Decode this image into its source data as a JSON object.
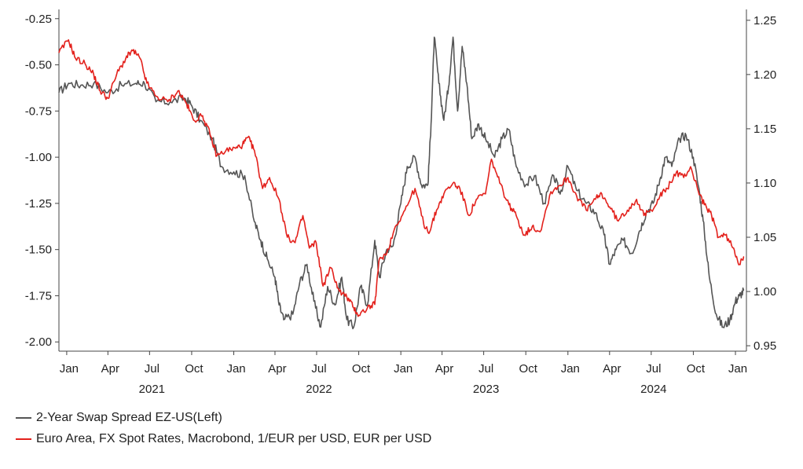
{
  "chart_data": {
    "type": "line",
    "title": "",
    "x_range": [
      "2020-12-15",
      "2025-01-25"
    ],
    "month_ticks": [
      "Jan",
      "Apr",
      "Jul",
      "Oct",
      "Jan",
      "Apr",
      "Jul",
      "Oct",
      "Jan",
      "Apr",
      "Jul",
      "Oct",
      "Jan",
      "Apr",
      "Jul",
      "Oct",
      "Jan"
    ],
    "month_tick_dates": [
      "2021-01-01",
      "2021-04-01",
      "2021-07-01",
      "2021-10-01",
      "2022-01-01",
      "2022-04-01",
      "2022-07-01",
      "2022-10-01",
      "2023-01-01",
      "2023-04-01",
      "2023-07-01",
      "2023-10-01",
      "2024-01-01",
      "2024-04-01",
      "2024-07-01",
      "2024-10-01",
      "2025-01-01"
    ],
    "year_labels": [
      "2021",
      "2022",
      "2023",
      "2024"
    ],
    "year_label_dates": [
      "2021-07-01",
      "2022-07-01",
      "2023-07-01",
      "2024-07-01"
    ],
    "left_axis": {
      "ylim": [
        -2.05,
        -0.2
      ],
      "ticks": [
        -2.0,
        -1.75,
        -1.5,
        -1.25,
        -1.0,
        -0.75,
        -0.5,
        -0.25
      ],
      "tick_labels": [
        "-2.00",
        "-1.75",
        "-1.50",
        "-1.25",
        "-1.00",
        "-0.75",
        "-0.50",
        "-0.25"
      ]
    },
    "right_axis": {
      "ylim": [
        0.945,
        1.26
      ],
      "ticks": [
        0.95,
        1.0,
        1.05,
        1.1,
        1.15,
        1.2,
        1.25
      ],
      "tick_labels": [
        "0.95",
        "1.00",
        "1.05",
        "1.10",
        "1.15",
        "1.20",
        "1.25"
      ]
    },
    "series": [
      {
        "name": "2-Year Swap Spread EZ-US(Left)",
        "axis": "left",
        "color": "#555555",
        "points": [
          [
            "2020-12-15",
            -0.65
          ],
          [
            "2021-01-05",
            -0.6
          ],
          [
            "2021-02-01",
            -0.61
          ],
          [
            "2021-03-01",
            -0.6
          ],
          [
            "2021-04-01",
            -0.65
          ],
          [
            "2021-05-01",
            -0.61
          ],
          [
            "2021-06-01",
            -0.6
          ],
          [
            "2021-06-20",
            -0.6
          ],
          [
            "2021-07-15",
            -0.7
          ],
          [
            "2021-08-15",
            -0.7
          ],
          [
            "2021-09-15",
            -0.68
          ],
          [
            "2021-10-01",
            -0.72
          ],
          [
            "2021-10-20",
            -0.8
          ],
          [
            "2021-11-15",
            -0.9
          ],
          [
            "2021-12-05",
            -1.05
          ],
          [
            "2022-01-01",
            -1.08
          ],
          [
            "2022-01-25",
            -1.1
          ],
          [
            "2022-02-15",
            -1.35
          ],
          [
            "2022-03-01",
            -1.45
          ],
          [
            "2022-03-15",
            -1.55
          ],
          [
            "2022-04-01",
            -1.65
          ],
          [
            "2022-04-10",
            -1.8
          ],
          [
            "2022-04-20",
            -1.88
          ],
          [
            "2022-05-10",
            -1.85
          ],
          [
            "2022-05-25",
            -1.68
          ],
          [
            "2022-06-10",
            -1.58
          ],
          [
            "2022-06-25",
            -1.78
          ],
          [
            "2022-07-10",
            -1.92
          ],
          [
            "2022-07-25",
            -1.7
          ],
          [
            "2022-08-10",
            -1.8
          ],
          [
            "2022-08-25",
            -1.65
          ],
          [
            "2022-09-05",
            -1.88
          ],
          [
            "2022-09-20",
            -1.92
          ],
          [
            "2022-10-05",
            -1.7
          ],
          [
            "2022-10-20",
            -1.8
          ],
          [
            "2022-11-05",
            -1.45
          ],
          [
            "2022-11-15",
            -1.65
          ],
          [
            "2022-12-01",
            -1.5
          ],
          [
            "2022-12-15",
            -1.48
          ],
          [
            "2023-01-01",
            -1.25
          ],
          [
            "2023-01-15",
            -1.05
          ],
          [
            "2023-02-01",
            -1.0
          ],
          [
            "2023-02-15",
            -1.15
          ],
          [
            "2023-03-01",
            -1.15
          ],
          [
            "2023-03-08",
            -0.82
          ],
          [
            "2023-03-15",
            -0.35
          ],
          [
            "2023-03-25",
            -0.6
          ],
          [
            "2023-04-05",
            -0.8
          ],
          [
            "2023-04-15",
            -0.62
          ],
          [
            "2023-04-25",
            -0.35
          ],
          [
            "2023-05-05",
            -0.75
          ],
          [
            "2023-05-15",
            -0.4
          ],
          [
            "2023-05-25",
            -0.6
          ],
          [
            "2023-06-05",
            -0.9
          ],
          [
            "2023-06-20",
            -0.82
          ],
          [
            "2023-07-05",
            -0.9
          ],
          [
            "2023-07-25",
            -1.0
          ],
          [
            "2023-08-10",
            -0.9
          ],
          [
            "2023-08-25",
            -0.85
          ],
          [
            "2023-09-10",
            -1.05
          ],
          [
            "2023-10-01",
            -1.15
          ],
          [
            "2023-10-20",
            -1.1
          ],
          [
            "2023-11-10",
            -1.25
          ],
          [
            "2023-12-01",
            -1.1
          ],
          [
            "2023-12-15",
            -1.2
          ],
          [
            "2024-01-01",
            -1.05
          ],
          [
            "2024-01-20",
            -1.18
          ],
          [
            "2024-02-10",
            -1.25
          ],
          [
            "2024-03-01",
            -1.3
          ],
          [
            "2024-03-20",
            -1.42
          ],
          [
            "2024-04-01",
            -1.58
          ],
          [
            "2024-04-15",
            -1.5
          ],
          [
            "2024-05-01",
            -1.45
          ],
          [
            "2024-05-20",
            -1.52
          ],
          [
            "2024-06-05",
            -1.4
          ],
          [
            "2024-06-20",
            -1.3
          ],
          [
            "2024-07-05",
            -1.25
          ],
          [
            "2024-07-20",
            -1.12
          ],
          [
            "2024-08-01",
            -1.0
          ],
          [
            "2024-08-15",
            -1.05
          ],
          [
            "2024-09-01",
            -0.9
          ],
          [
            "2024-09-15",
            -0.88
          ],
          [
            "2024-10-01",
            -1.0
          ],
          [
            "2024-10-15",
            -1.2
          ],
          [
            "2024-10-25",
            -1.4
          ],
          [
            "2024-11-05",
            -1.65
          ],
          [
            "2024-11-20",
            -1.85
          ],
          [
            "2024-12-05",
            -1.92
          ],
          [
            "2024-12-20",
            -1.88
          ],
          [
            "2025-01-01",
            -1.78
          ],
          [
            "2025-01-10",
            -1.75
          ],
          [
            "2025-01-20",
            -1.72
          ]
        ]
      },
      {
        "name": "Euro Area, FX Spot Rates, Macrobond, 1/EUR per USD, EUR per USD",
        "axis": "right",
        "color": "#e3211c",
        "points": [
          [
            "2020-12-15",
            1.22
          ],
          [
            "2021-01-05",
            1.232
          ],
          [
            "2021-01-20",
            1.215
          ],
          [
            "2021-02-10",
            1.21
          ],
          [
            "2021-03-01",
            1.2
          ],
          [
            "2021-03-15",
            1.185
          ],
          [
            "2021-04-01",
            1.178
          ],
          [
            "2021-04-20",
            1.2
          ],
          [
            "2021-05-10",
            1.215
          ],
          [
            "2021-05-25",
            1.222
          ],
          [
            "2021-06-10",
            1.215
          ],
          [
            "2021-06-25",
            1.192
          ],
          [
            "2021-07-15",
            1.18
          ],
          [
            "2021-08-10",
            1.175
          ],
          [
            "2021-09-01",
            1.185
          ],
          [
            "2021-09-20",
            1.173
          ],
          [
            "2021-10-05",
            1.158
          ],
          [
            "2021-10-25",
            1.162
          ],
          [
            "2021-11-10",
            1.145
          ],
          [
            "2021-11-25",
            1.125
          ],
          [
            "2021-12-15",
            1.13
          ],
          [
            "2022-01-05",
            1.132
          ],
          [
            "2022-01-20",
            1.135
          ],
          [
            "2022-02-01",
            1.142
          ],
          [
            "2022-02-15",
            1.13
          ],
          [
            "2022-03-05",
            1.095
          ],
          [
            "2022-03-20",
            1.105
          ],
          [
            "2022-04-10",
            1.085
          ],
          [
            "2022-04-28",
            1.05
          ],
          [
            "2022-05-15",
            1.045
          ],
          [
            "2022-06-01",
            1.07
          ],
          [
            "2022-06-15",
            1.04
          ],
          [
            "2022-06-30",
            1.045
          ],
          [
            "2022-07-15",
            1.005
          ],
          [
            "2022-08-01",
            1.022
          ],
          [
            "2022-08-20",
            1.0
          ],
          [
            "2022-09-05",
            0.995
          ],
          [
            "2022-09-20",
            0.985
          ],
          [
            "2022-10-01",
            0.978
          ],
          [
            "2022-10-20",
            0.985
          ],
          [
            "2022-11-05",
            0.988
          ],
          [
            "2022-11-15",
            1.03
          ],
          [
            "2022-12-01",
            1.035
          ],
          [
            "2022-12-20",
            1.06
          ],
          [
            "2023-01-10",
            1.075
          ],
          [
            "2023-02-01",
            1.095
          ],
          [
            "2023-02-20",
            1.062
          ],
          [
            "2023-03-05",
            1.055
          ],
          [
            "2023-03-20",
            1.075
          ],
          [
            "2023-04-05",
            1.09
          ],
          [
            "2023-04-25",
            1.1
          ],
          [
            "2023-05-10",
            1.095
          ],
          [
            "2023-05-30",
            1.07
          ],
          [
            "2023-06-15",
            1.085
          ],
          [
            "2023-07-05",
            1.09
          ],
          [
            "2023-07-18",
            1.122
          ],
          [
            "2023-08-05",
            1.1
          ],
          [
            "2023-08-25",
            1.08
          ],
          [
            "2023-09-10",
            1.07
          ],
          [
            "2023-09-28",
            1.052
          ],
          [
            "2023-10-15",
            1.06
          ],
          [
            "2023-11-01",
            1.055
          ],
          [
            "2023-11-25",
            1.092
          ],
          [
            "2023-12-15",
            1.098
          ],
          [
            "2024-01-01",
            1.105
          ],
          [
            "2024-01-20",
            1.088
          ],
          [
            "2024-02-10",
            1.075
          ],
          [
            "2024-03-01",
            1.085
          ],
          [
            "2024-03-15",
            1.09
          ],
          [
            "2024-04-01",
            1.078
          ],
          [
            "2024-04-20",
            1.065
          ],
          [
            "2024-05-10",
            1.075
          ],
          [
            "2024-05-30",
            1.085
          ],
          [
            "2024-06-15",
            1.07
          ],
          [
            "2024-07-01",
            1.075
          ],
          [
            "2024-07-20",
            1.088
          ],
          [
            "2024-08-05",
            1.095
          ],
          [
            "2024-08-25",
            1.11
          ],
          [
            "2024-09-10",
            1.105
          ],
          [
            "2024-09-25",
            1.115
          ],
          [
            "2024-10-10",
            1.095
          ],
          [
            "2024-10-25",
            1.08
          ],
          [
            "2024-11-10",
            1.07
          ],
          [
            "2024-11-25",
            1.05
          ],
          [
            "2024-12-10",
            1.052
          ],
          [
            "2024-12-28",
            1.04
          ],
          [
            "2025-01-10",
            1.025
          ],
          [
            "2025-01-20",
            1.032
          ]
        ]
      }
    ],
    "legend": "bottom-left"
  },
  "legend": {
    "items": [
      {
        "label": "2-Year Swap Spread EZ-US(Left)",
        "color": "#555555"
      },
      {
        "label": "Euro Area, FX Spot Rates, Macrobond, 1/EUR per USD, EUR per USD",
        "color": "#e3211c"
      }
    ]
  }
}
